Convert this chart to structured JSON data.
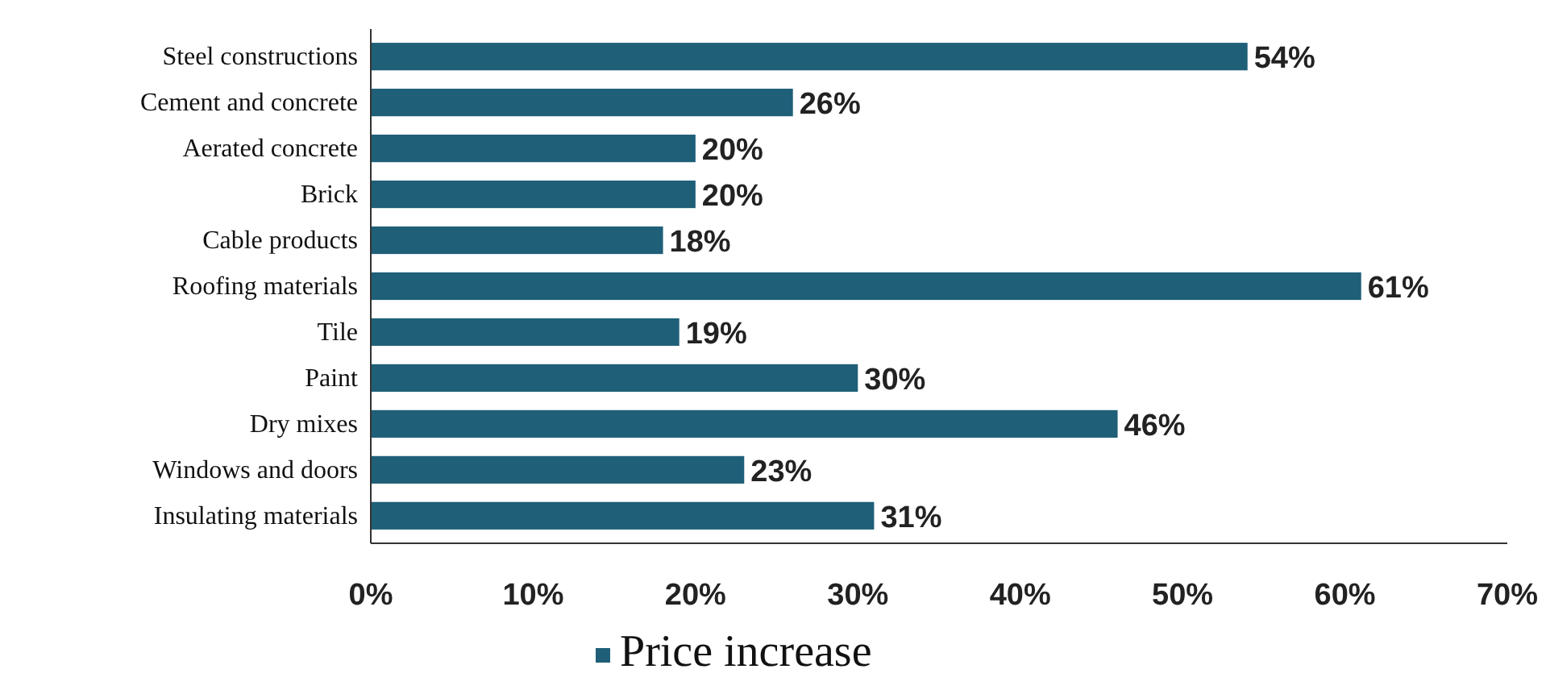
{
  "chart_data": {
    "type": "bar",
    "orientation": "horizontal",
    "categories": [
      "Steel constructions",
      "Cement and concrete",
      "Aerated concrete",
      "Brick",
      "Cable products",
      "Roofing materials",
      "Tile",
      "Paint",
      "Dry mixes",
      "Windows and doors",
      "Insulating materials"
    ],
    "series": [
      {
        "name": "Price increase",
        "color": "#1f5f78",
        "values": [
          54,
          26,
          20,
          20,
          18,
          61,
          19,
          30,
          46,
          23,
          31
        ],
        "value_labels": [
          "54%",
          "26%",
          "20%",
          "20%",
          "18%",
          "61%",
          "19%",
          "30%",
          "46%",
          "23%",
          "31%"
        ]
      }
    ],
    "xlim": [
      0,
      70
    ],
    "xticks": [
      {
        "value": 0,
        "label": "0%"
      },
      {
        "value": 10,
        "label": "10%"
      },
      {
        "value": 20,
        "label": "20%"
      },
      {
        "value": 30,
        "label": "30%"
      },
      {
        "value": 40,
        "label": "40%"
      },
      {
        "value": 50,
        "label": "50%"
      },
      {
        "value": 60,
        "label": "60%"
      },
      {
        "value": 70,
        "label": "70%"
      }
    ],
    "grid": false,
    "legend": "bottom"
  }
}
